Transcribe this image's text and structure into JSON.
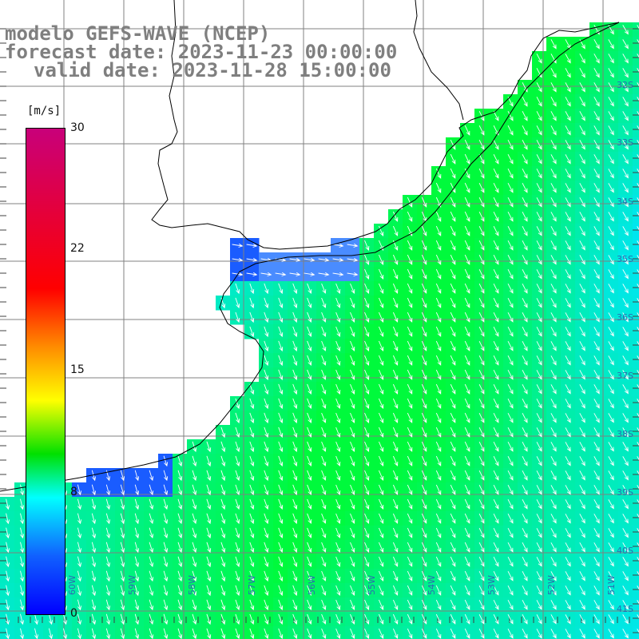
{
  "title": {
    "line1": "modelo GEFS-WAVE (NCEP)",
    "line2": "forecast date: 2023-11-23 00:00:00",
    "line3": "valid date: 2023-11-28 15:00:00"
  },
  "colorbar": {
    "unit": "[m/s]",
    "ticks": [
      "30",
      "22",
      "15",
      "8",
      "0"
    ],
    "tick_values": [
      30,
      22,
      15,
      8,
      0
    ],
    "range": [
      0,
      30
    ],
    "colors": [
      "#0000ff",
      "#1060ff",
      "#00ffff",
      "#00e000",
      "#ffff00",
      "#ff8c00",
      "#ff0000",
      "#c8007a"
    ]
  },
  "map": {
    "variable": "wind speed and direction",
    "land_color": "#ffffff",
    "coastline_color": "#000000",
    "grid_color": "#808080",
    "arrow_color": "#ffffff",
    "lat_labels": [
      "32S",
      "33S",
      "34S",
      "35S",
      "36S",
      "37S",
      "38S",
      "39S",
      "40S",
      "41S"
    ],
    "lon_labels": [
      "60W",
      "59W",
      "58W",
      "57W",
      "56W",
      "55W",
      "54W",
      "53W",
      "52W",
      "51W"
    ]
  }
}
